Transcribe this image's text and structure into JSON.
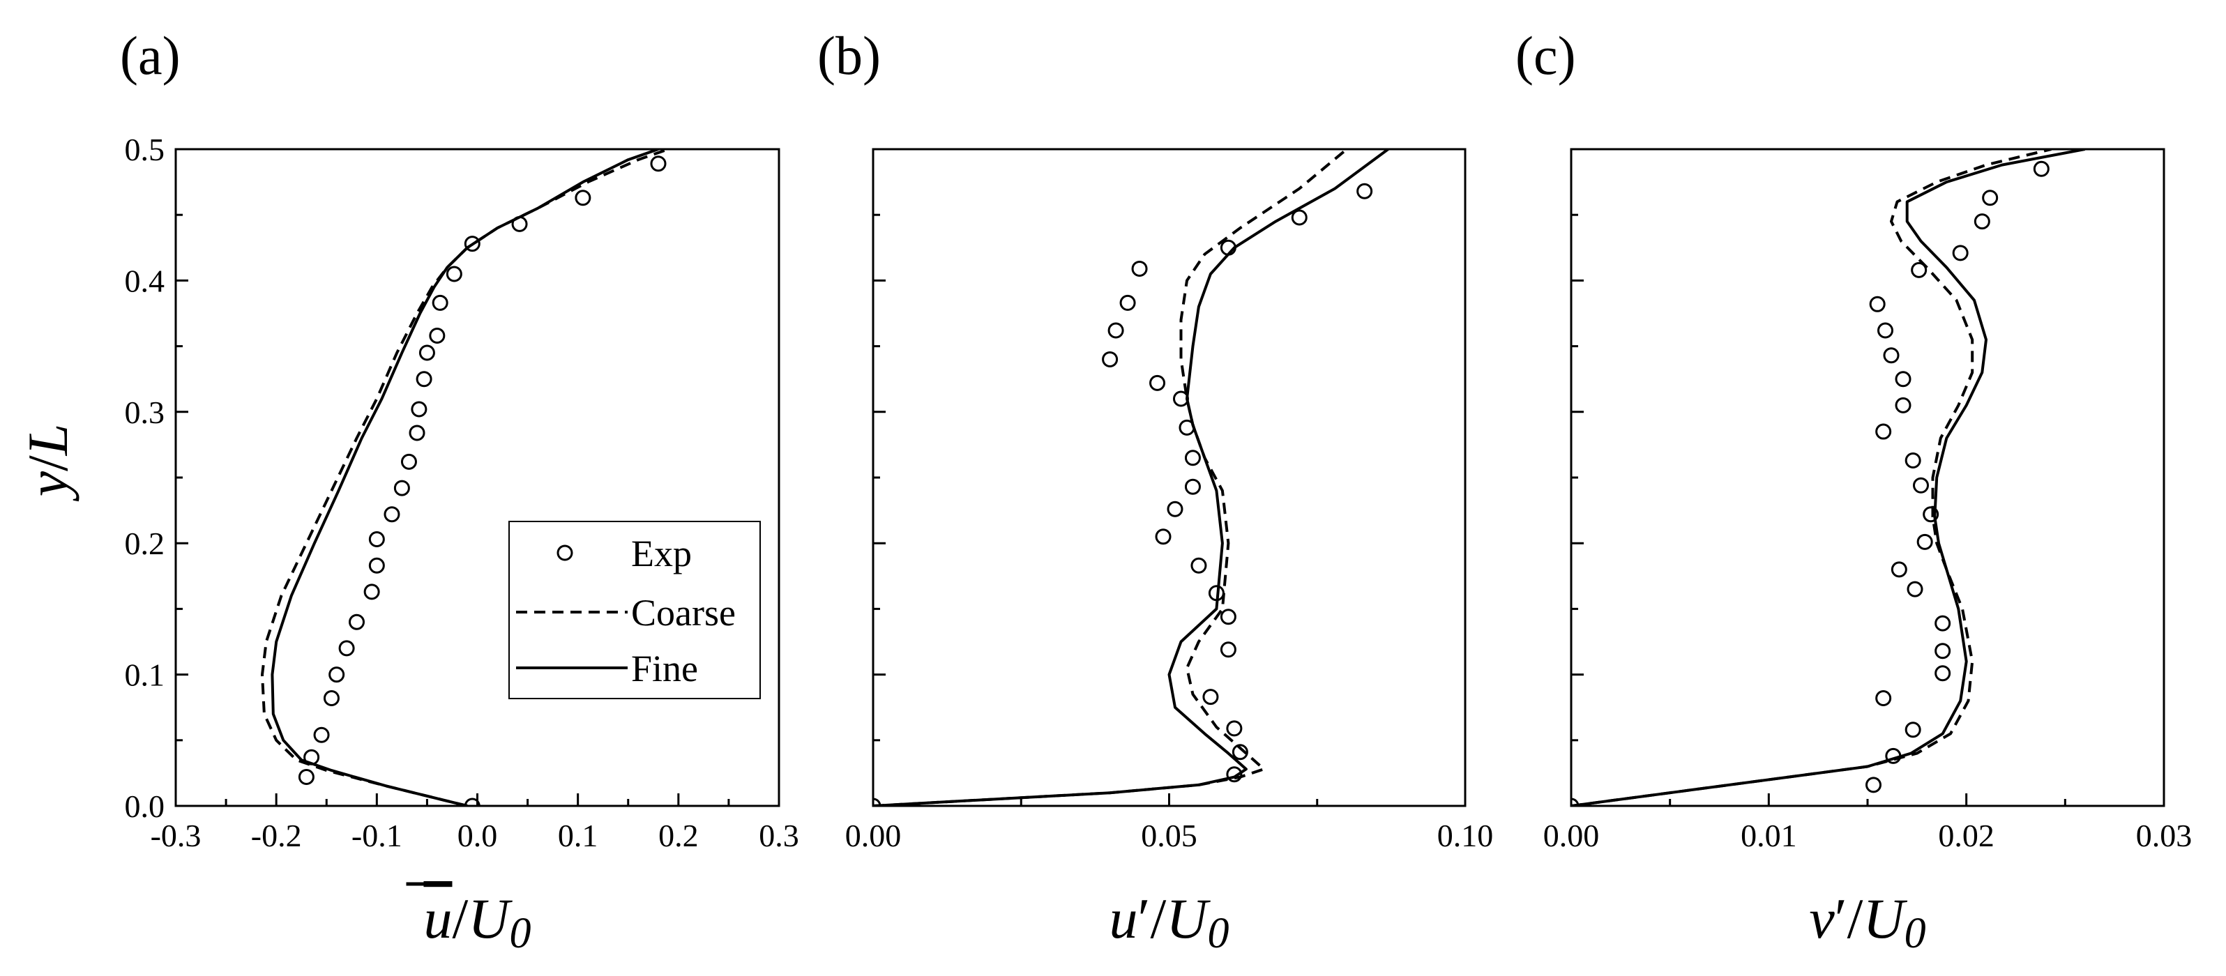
{
  "figure": {
    "ylabel": {
      "var": "y",
      "sep": "/",
      "ref": "L"
    },
    "legend": {
      "exp": "Exp",
      "coarse": "Coarse",
      "fine": "Fine"
    },
    "yticks": [
      "0.0",
      "0.1",
      "0.2",
      "0.3",
      "0.4",
      "0.5"
    ]
  },
  "chart_data": [
    {
      "type": "line",
      "panel_label": "(a)",
      "xlabel": {
        "var": "u",
        "overbar": true,
        "prime": "",
        "sep": "/",
        "ref": "U",
        "sub": "0"
      },
      "ylabel": "y/L",
      "xlim": [
        -0.3,
        0.3
      ],
      "ylim": [
        0,
        0.5
      ],
      "xticks": [
        "-0.3",
        "-0.2",
        "-0.1",
        "0.0",
        "0.1",
        "0.2",
        "0.3"
      ],
      "legend_position": "center-right",
      "series": [
        {
          "name": "Exp",
          "style": "markers",
          "x": [
            -0.005,
            -0.17,
            -0.165,
            -0.155,
            -0.145,
            -0.14,
            -0.13,
            -0.12,
            -0.105,
            -0.1,
            -0.1,
            -0.085,
            -0.075,
            -0.068,
            -0.06,
            -0.058,
            -0.053,
            -0.05,
            -0.04,
            -0.037,
            -0.023,
            -0.005,
            0.042,
            0.105,
            0.18
          ],
          "y": [
            0.0,
            0.022,
            0.037,
            0.054,
            0.082,
            0.1,
            0.12,
            0.14,
            0.163,
            0.183,
            0.203,
            0.222,
            0.242,
            0.262,
            0.284,
            0.302,
            0.325,
            0.345,
            0.358,
            0.383,
            0.405,
            0.428,
            0.443,
            0.463,
            0.489
          ]
        },
        {
          "name": "Coarse",
          "style": "dashed",
          "x": [
            -0.01,
            -0.09,
            -0.15,
            -0.18,
            -0.2,
            -0.212,
            -0.214,
            -0.21,
            -0.195,
            -0.17,
            -0.145,
            -0.12,
            -0.1,
            -0.08,
            -0.06,
            -0.045,
            -0.03,
            -0.01,
            0.02,
            0.06,
            0.11,
            0.16,
            0.19
          ],
          "y": [
            0.0,
            0.015,
            0.027,
            0.035,
            0.05,
            0.07,
            0.1,
            0.125,
            0.16,
            0.2,
            0.24,
            0.28,
            0.31,
            0.345,
            0.375,
            0.395,
            0.41,
            0.425,
            0.44,
            0.455,
            0.475,
            0.492,
            0.5
          ]
        },
        {
          "name": "Fine",
          "style": "solid",
          "x": [
            -0.01,
            -0.09,
            -0.145,
            -0.175,
            -0.193,
            -0.203,
            -0.204,
            -0.2,
            -0.185,
            -0.162,
            -0.138,
            -0.115,
            -0.095,
            -0.075,
            -0.057,
            -0.043,
            -0.03,
            -0.01,
            0.02,
            0.06,
            0.105,
            0.15,
            0.18
          ],
          "y": [
            0.0,
            0.015,
            0.027,
            0.035,
            0.05,
            0.07,
            0.1,
            0.125,
            0.16,
            0.2,
            0.24,
            0.28,
            0.31,
            0.345,
            0.375,
            0.395,
            0.41,
            0.425,
            0.44,
            0.455,
            0.475,
            0.492,
            0.5
          ]
        }
      ]
    },
    {
      "type": "line",
      "panel_label": "(b)",
      "xlabel": {
        "var": "u",
        "overbar": false,
        "prime": "′",
        "sep": "/",
        "ref": "U",
        "sub": "0"
      },
      "ylabel": "y/L",
      "xlim": [
        0.0,
        0.1
      ],
      "ylim": [
        0,
        0.5
      ],
      "xticks": [
        "0.00",
        "0.05",
        "0.10"
      ],
      "series": [
        {
          "name": "Exp",
          "style": "markers",
          "x": [
            0.0,
            0.061,
            0.062,
            0.061,
            0.057,
            0.06,
            0.06,
            0.058,
            0.055,
            0.049,
            0.051,
            0.054,
            0.054,
            0.053,
            0.052,
            0.048,
            0.04,
            0.041,
            0.043,
            0.045,
            0.06,
            0.072,
            0.083
          ],
          "y": [
            0.0,
            0.024,
            0.041,
            0.059,
            0.083,
            0.119,
            0.144,
            0.162,
            0.183,
            0.205,
            0.226,
            0.243,
            0.265,
            0.288,
            0.31,
            0.322,
            0.34,
            0.362,
            0.383,
            0.409,
            0.425,
            0.448,
            0.468
          ]
        },
        {
          "name": "Coarse",
          "style": "dashed",
          "x": [
            0.0,
            0.02,
            0.04,
            0.055,
            0.062,
            0.066,
            0.063,
            0.058,
            0.054,
            0.053,
            0.055,
            0.059,
            0.06,
            0.059,
            0.056,
            0.054,
            0.053,
            0.052,
            0.052,
            0.053,
            0.056,
            0.062,
            0.072,
            0.08
          ],
          "y": [
            0.0,
            0.005,
            0.01,
            0.016,
            0.022,
            0.028,
            0.04,
            0.06,
            0.085,
            0.105,
            0.125,
            0.15,
            0.2,
            0.24,
            0.265,
            0.29,
            0.31,
            0.34,
            0.37,
            0.4,
            0.42,
            0.44,
            0.47,
            0.5
          ]
        },
        {
          "name": "Fine",
          "style": "solid",
          "x": [
            0.0,
            0.02,
            0.04,
            0.055,
            0.061,
            0.063,
            0.06,
            0.056,
            0.051,
            0.05,
            0.052,
            0.058,
            0.059,
            0.058,
            0.056,
            0.054,
            0.053,
            0.054,
            0.055,
            0.057,
            0.061,
            0.068,
            0.078,
            0.087
          ],
          "y": [
            0.0,
            0.005,
            0.01,
            0.016,
            0.022,
            0.028,
            0.04,
            0.055,
            0.075,
            0.1,
            0.125,
            0.15,
            0.2,
            0.24,
            0.265,
            0.29,
            0.31,
            0.35,
            0.38,
            0.405,
            0.425,
            0.445,
            0.47,
            0.5
          ]
        }
      ]
    },
    {
      "type": "line",
      "panel_label": "(c)",
      "xlabel": {
        "var": "v",
        "overbar": false,
        "prime": "′",
        "sep": "/",
        "ref": "U",
        "sub": "0"
      },
      "ylabel": "y/L",
      "xlim": [
        0.0,
        0.03
      ],
      "ylim": [
        0,
        0.5
      ],
      "xticks": [
        "0.00",
        "0.01",
        "0.02",
        "0.03"
      ],
      "series": [
        {
          "name": "Exp",
          "style": "markers",
          "x": [
            0.0,
            0.0153,
            0.0163,
            0.0173,
            0.0158,
            0.0188,
            0.0188,
            0.0188,
            0.0174,
            0.0166,
            0.0179,
            0.0182,
            0.0177,
            0.0173,
            0.0158,
            0.0168,
            0.0168,
            0.0162,
            0.0159,
            0.0155,
            0.0176,
            0.0197,
            0.0208,
            0.0212,
            0.0238
          ],
          "y": [
            0.0,
            0.016,
            0.038,
            0.058,
            0.082,
            0.101,
            0.118,
            0.139,
            0.165,
            0.18,
            0.201,
            0.222,
            0.244,
            0.263,
            0.285,
            0.305,
            0.325,
            0.343,
            0.362,
            0.382,
            0.408,
            0.421,
            0.445,
            0.463,
            0.485
          ]
        },
        {
          "name": "Coarse",
          "style": "dashed",
          "x": [
            0.0,
            0.006,
            0.011,
            0.015,
            0.0175,
            0.0192,
            0.0201,
            0.0203,
            0.0198,
            0.019,
            0.0185,
            0.0183,
            0.0183,
            0.0187,
            0.0196,
            0.0203,
            0.0203,
            0.0195,
            0.018,
            0.0167,
            0.0162,
            0.0165,
            0.0185,
            0.021,
            0.0243
          ],
          "y": [
            0.0,
            0.012,
            0.022,
            0.03,
            0.04,
            0.055,
            0.08,
            0.11,
            0.15,
            0.18,
            0.2,
            0.22,
            0.25,
            0.28,
            0.305,
            0.33,
            0.355,
            0.385,
            0.41,
            0.43,
            0.445,
            0.46,
            0.475,
            0.488,
            0.5
          ]
        },
        {
          "name": "Fine",
          "style": "solid",
          "x": [
            0.0,
            0.006,
            0.011,
            0.015,
            0.0172,
            0.0188,
            0.0197,
            0.02,
            0.0196,
            0.019,
            0.0186,
            0.0184,
            0.0185,
            0.019,
            0.02,
            0.0208,
            0.021,
            0.0204,
            0.019,
            0.0177,
            0.017,
            0.017,
            0.019,
            0.0218,
            0.026
          ],
          "y": [
            0.0,
            0.012,
            0.022,
            0.03,
            0.04,
            0.055,
            0.08,
            0.11,
            0.15,
            0.18,
            0.2,
            0.22,
            0.25,
            0.28,
            0.305,
            0.33,
            0.355,
            0.385,
            0.41,
            0.43,
            0.445,
            0.46,
            0.475,
            0.488,
            0.5
          ]
        }
      ]
    }
  ]
}
